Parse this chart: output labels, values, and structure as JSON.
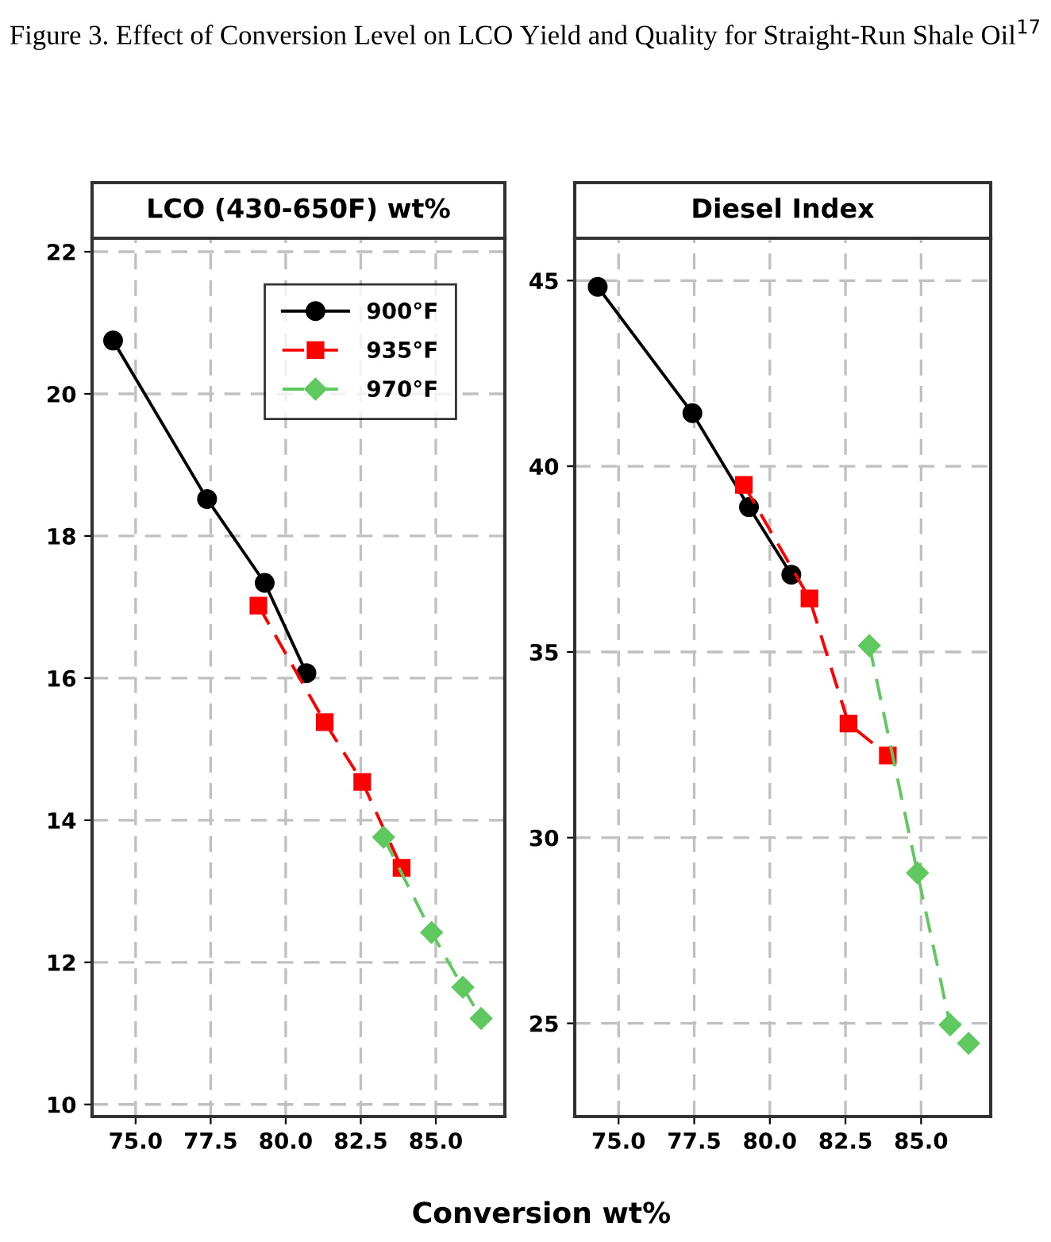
{
  "chart_data": [
    {
      "type": "line",
      "title": "LCO (430-650F) wt%",
      "xlabel": "Conversion wt%",
      "xlim": [
        73.55,
        87.3
      ],
      "xticks": [
        {
          "value": 75,
          "label": "75.0"
        },
        {
          "value": 77.5,
          "label": "77.5"
        },
        {
          "value": 80,
          "label": "80.0"
        },
        {
          "value": 82.5,
          "label": "82.5"
        },
        {
          "value": 85,
          "label": "85.0"
        }
      ],
      "ylim": [
        9.83,
        22.19
      ],
      "yticks": [
        10,
        12,
        14,
        16,
        18,
        20,
        22
      ],
      "grid": true,
      "legend": "top",
      "annotations": [
        "Figure 3. Effect of Conversion Level on LCO Yield and Quality for Straight-Run Shale Oil$^{17}$"
      ],
      "series": [
        {
          "name": "900°F",
          "color": "#000000",
          "marker": "circle",
          "line_style": "solid",
          "x": [
            74.25,
            77.38,
            79.3,
            80.69
          ],
          "values": [
            20.75,
            18.52,
            17.34,
            16.07
          ]
        },
        {
          "name": "935°F",
          "color": "#ff0000",
          "marker": "square",
          "line_style": "dashed",
          "x": [
            79.09,
            81.3,
            82.55,
            83.86
          ],
          "values": [
            17.02,
            15.38,
            14.54,
            13.33
          ]
        },
        {
          "name": "970°F",
          "color": "#5fc85f",
          "marker": "diamond",
          "line_style": "dashed",
          "x": [
            83.26,
            84.86,
            85.9,
            86.51
          ],
          "values": [
            13.76,
            12.42,
            11.65,
            11.21
          ]
        }
      ]
    },
    {
      "type": "line",
      "title": "Diesel Index",
      "xlim": [
        73.55,
        87.3
      ],
      "xticks": [
        {
          "value": 75,
          "label": "75.0"
        },
        {
          "value": 77.5,
          "label": "77.5"
        },
        {
          "value": 80,
          "label": "80.0"
        },
        {
          "value": 82.5,
          "label": "82.5"
        },
        {
          "value": 85,
          "label": "85.0"
        }
      ],
      "ylim": [
        22.49,
        46.14
      ],
      "yticks": [
        25,
        30,
        35,
        40,
        45
      ],
      "grid": true,
      "series": [
        {
          "color": "#000000",
          "marker": "circle",
          "line_style": "solid",
          "x": [
            74.31,
            77.44,
            79.31,
            80.71
          ],
          "values": [
            44.83,
            41.43,
            38.9,
            37.08
          ]
        },
        {
          "color": "#ff0000",
          "marker": "square",
          "line_style": "dashed",
          "x": [
            79.14,
            81.31,
            82.6,
            83.9
          ],
          "values": [
            39.5,
            36.44,
            33.07,
            32.21
          ]
        },
        {
          "color": "#5fc85f",
          "marker": "diamond",
          "line_style": "dashed",
          "x": [
            83.29,
            84.88,
            85.96,
            86.57
          ],
          "values": [
            35.17,
            29.05,
            24.96,
            24.46
          ]
        }
      ]
    }
  ]
}
